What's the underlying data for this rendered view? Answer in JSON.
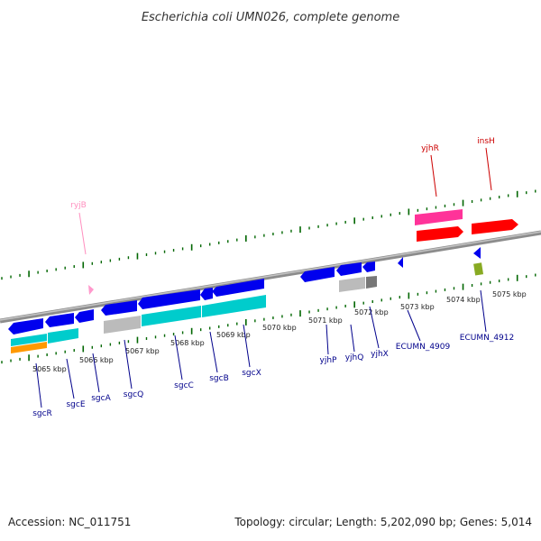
{
  "title": "Escherichia coli UMN026, complete genome",
  "footer": {
    "accession": "Accession: NC_011751",
    "summary": "Topology: circular; Length: 5,202,090 bp; Genes: 5,014"
  },
  "kbp_labels": [
    "5065 kbp",
    "5066 kbp",
    "5067 kbp",
    "5068 kbp",
    "5069 kbp",
    "5070 kbp",
    "5071 kbp",
    "5072 kbp",
    "5073 kbp",
    "5074 kbp",
    "5075 kbp"
  ],
  "genes": [
    {
      "name": "sgcR",
      "color": "#00008b"
    },
    {
      "name": "sgcE",
      "color": "#00008b"
    },
    {
      "name": "sgcA",
      "color": "#00008b"
    },
    {
      "name": "sgcQ",
      "color": "#00008b"
    },
    {
      "name": "sgcC",
      "color": "#00008b"
    },
    {
      "name": "sgcB",
      "color": "#00008b"
    },
    {
      "name": "sgcX",
      "color": "#00008b"
    },
    {
      "name": "yjhP",
      "color": "#00008b"
    },
    {
      "name": "yjhQ",
      "color": "#00008b"
    },
    {
      "name": "yjhX",
      "color": "#00008b"
    },
    {
      "name": "ECUMN_4909",
      "color": "#00008b"
    },
    {
      "name": "ECUMN_4912",
      "color": "#00008b"
    },
    {
      "name": "ryjB",
      "color": "#ff8fbf"
    },
    {
      "name": "yjhR",
      "color": "#cc0000"
    },
    {
      "name": "insH",
      "color": "#cc0000"
    }
  ],
  "colors": {
    "forward_gene": "#0000ee",
    "reverse_gene": "#0000ee",
    "cds_cyan": "#00cccc",
    "cds_gray": "#bbbbbb",
    "cds_orange": "#ff9900",
    "pseudo_pink": "#ff3399",
    "insertion_red": "#ff0000",
    "ncrna_pink": "#ff99cc",
    "olive": "#88aa22",
    "tick_green": "#006600",
    "backbone": "#888888"
  }
}
